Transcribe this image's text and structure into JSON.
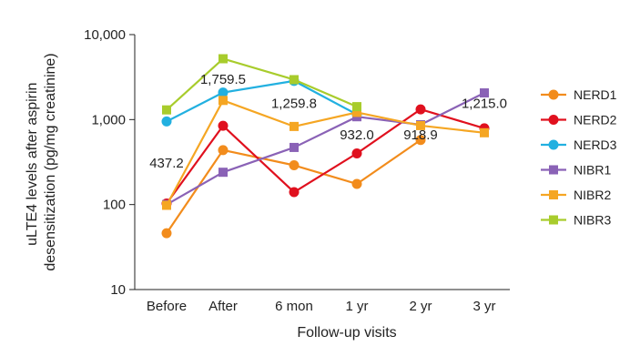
{
  "chart_data": {
    "type": "line",
    "x": [
      "Before",
      "After",
      "6 mon",
      "1 yr",
      "2 yr",
      "3 yr"
    ],
    "xlabel": "Follow-up visits",
    "ylabel": [
      "uLTE4 levels after aspirin",
      "desensitization (pg/mg creatinine)"
    ],
    "yscale": "log",
    "ylim": [
      10,
      10000
    ],
    "yticks": [
      10,
      100,
      1000,
      10000
    ],
    "ytick_labels": [
      "10",
      "100",
      "1,000",
      "10,000"
    ],
    "grid": false,
    "legend_position": "right",
    "series": [
      {
        "name": "NERD1",
        "color": "#f28c1c",
        "marker": "circle",
        "values": [
          46,
          437.2,
          290,
          175,
          575,
          null
        ]
      },
      {
        "name": "NERD2",
        "color": "#e0101e",
        "marker": "circle",
        "values": [
          103,
          845,
          140,
          400,
          1320,
          790
        ]
      },
      {
        "name": "NERD3",
        "color": "#22b0e0",
        "marker": "circle",
        "values": [
          950,
          2080,
          2850,
          1150,
          null,
          null
        ]
      },
      {
        "name": "NIBR1",
        "color": "#8a62b6",
        "marker": "square",
        "values": [
          100,
          240,
          470,
          1080,
          870,
          2060
        ]
      },
      {
        "name": "NIBR2",
        "color": "#f5a623",
        "marker": "square",
        "values": [
          98,
          1680,
          830,
          1215,
          850,
          700
        ]
      },
      {
        "name": "NIBR3",
        "color": "#a8cc2c",
        "marker": "square",
        "values": [
          1300,
          5200,
          2950,
          1420,
          null,
          null
        ]
      }
    ],
    "annotations": [
      {
        "text": "437.2",
        "x": "Before",
        "y": 310
      },
      {
        "text": "1,759.5",
        "x": "After",
        "y": 3000
      },
      {
        "text": "1,259.8",
        "x": "6 mon",
        "y": 1560
      },
      {
        "text": "932.0",
        "x": "1 yr",
        "y": 660
      },
      {
        "text": "918.9",
        "x": "2 yr",
        "y": 660
      },
      {
        "text": "1,215.0",
        "x": "3 yr",
        "y": 1560
      }
    ]
  }
}
